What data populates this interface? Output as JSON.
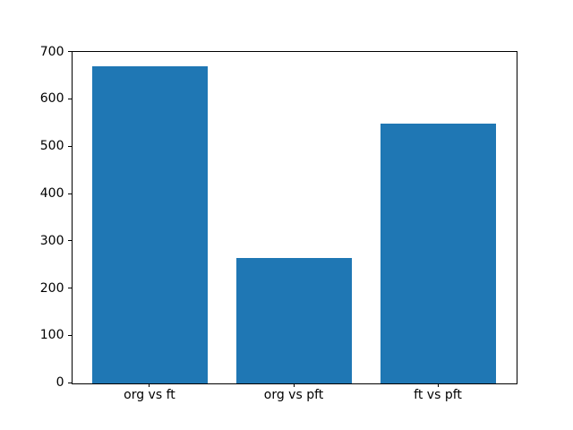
{
  "chart_data": {
    "type": "bar",
    "title": "",
    "categories": [
      "org vs ft",
      "org vs pft",
      "ft vs pft"
    ],
    "values": [
      670,
      265,
      550
    ],
    "xlabel": "",
    "ylabel": "",
    "ylim": [
      0,
      700
    ],
    "yticks": [
      0,
      100,
      200,
      300,
      400,
      500,
      600,
      700
    ],
    "xlim": [
      -0.54,
      2.54
    ],
    "bar_positions": [
      0,
      1,
      2
    ],
    "bar_width": 0.8,
    "bar_color": "#1f77b4",
    "axis_color": "#000000",
    "tick_label_color": "#000000",
    "background_color": "#ffffff",
    "grid": false,
    "legend": "none"
  }
}
